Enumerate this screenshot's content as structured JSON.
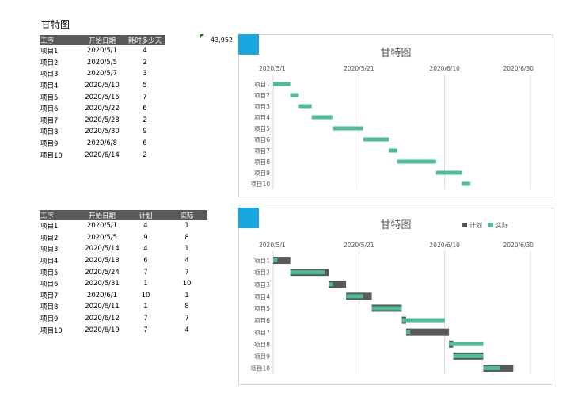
{
  "sheet": {
    "title": "甘特图",
    "corner_value": "43,952"
  },
  "table1": {
    "headers": [
      "工序",
      "开始日期",
      "耗时多少天"
    ],
    "rows": [
      [
        "项目1",
        "2020/5/1",
        "4"
      ],
      [
        "项目2",
        "2020/5/5",
        "2"
      ],
      [
        "项目3",
        "2020/5/7",
        "3"
      ],
      [
        "项目4",
        "2020/5/10",
        "5"
      ],
      [
        "项目5",
        "2020/5/15",
        "7"
      ],
      [
        "项目6",
        "2020/5/22",
        "6"
      ],
      [
        "项目7",
        "2020/5/28",
        "2"
      ],
      [
        "项目8",
        "2020/5/30",
        "9"
      ],
      [
        "项目9",
        "2020/6/8",
        "6"
      ],
      [
        "项目10",
        "2020/6/14",
        "2"
      ]
    ]
  },
  "table2": {
    "headers": [
      "工序",
      "开始日期",
      "计划",
      "实际"
    ],
    "rows": [
      [
        "项目1",
        "2020/5/1",
        "4",
        "1"
      ],
      [
        "项目2",
        "2020/5/5",
        "9",
        "8"
      ],
      [
        "项目3",
        "2020/5/14",
        "4",
        "1"
      ],
      [
        "项目4",
        "2020/5/18",
        "6",
        "4"
      ],
      [
        "项目5",
        "2020/5/24",
        "7",
        "7"
      ],
      [
        "项目6",
        "2020/5/31",
        "1",
        "10"
      ],
      [
        "项目7",
        "2020/6/1",
        "10",
        "1"
      ],
      [
        "项目8",
        "2020/6/11",
        "1",
        "8"
      ],
      [
        "项目9",
        "2020/6/12",
        "7",
        "7"
      ],
      [
        "项目10",
        "2020/6/19",
        "7",
        "4"
      ]
    ]
  },
  "chart_data": [
    {
      "type": "bar",
      "orientation": "horizontal-stacked",
      "title": "甘特图",
      "categories": [
        "项目1",
        "项目2",
        "项目3",
        "项目4",
        "项目5",
        "项目6",
        "项目7",
        "项目8",
        "项目9",
        "项目10"
      ],
      "x_ticks": [
        "2020/5/1",
        "2020/5/21",
        "2020/6/10",
        "2020/6/30"
      ],
      "xlim": [
        "2020/5/1",
        "2020/6/30"
      ],
      "start": [
        "2020/5/1",
        "2020/5/5",
        "2020/5/7",
        "2020/5/10",
        "2020/5/15",
        "2020/5/22",
        "2020/5/28",
        "2020/5/30",
        "2020/6/8",
        "2020/6/14"
      ],
      "duration": [
        4,
        2,
        3,
        5,
        7,
        6,
        2,
        9,
        6,
        2
      ],
      "bar_color": "#4dbd98",
      "grid": true,
      "legend": "none"
    },
    {
      "type": "bar",
      "orientation": "horizontal-overlay",
      "title": "甘特图",
      "categories": [
        "项目1",
        "项目2",
        "项目3",
        "项目4",
        "项目5",
        "项目6",
        "项目7",
        "项目8",
        "项目9",
        "项目10"
      ],
      "x_ticks": [
        "2020/5/1",
        "2020/5/21",
        "2020/6/10",
        "2020/6/30"
      ],
      "xlim": [
        "2020/5/1",
        "2020/6/30"
      ],
      "start": [
        "2020/5/1",
        "2020/5/5",
        "2020/5/14",
        "2020/5/18",
        "2020/5/24",
        "2020/5/31",
        "2020/6/1",
        "2020/6/11",
        "2020/6/12",
        "2020/6/19"
      ],
      "series": [
        {
          "name": "计划",
          "values": [
            4,
            9,
            4,
            6,
            7,
            1,
            10,
            1,
            7,
            7
          ],
          "color": "#595959"
        },
        {
          "name": "实际",
          "values": [
            1,
            8,
            1,
            4,
            7,
            10,
            1,
            8,
            7,
            4
          ],
          "color": "#4dbd98"
        }
      ],
      "grid": true,
      "legend": "top-right"
    }
  ]
}
